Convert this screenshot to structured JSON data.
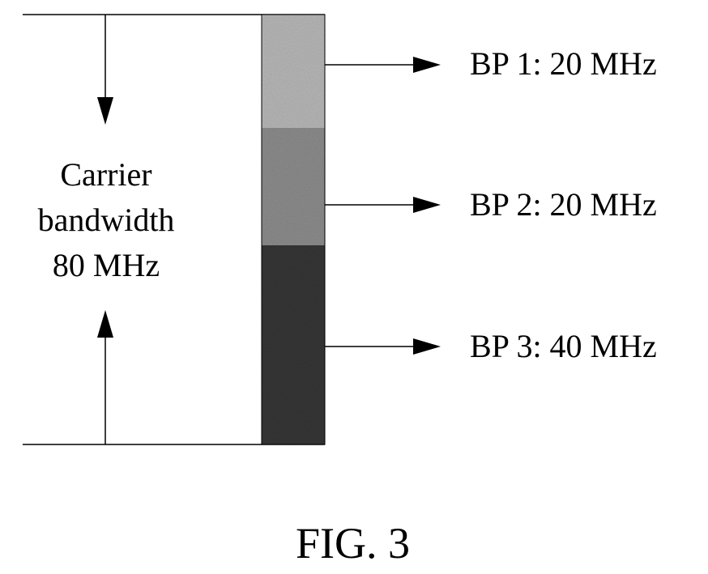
{
  "diagram": {
    "carrier": {
      "label_lines": [
        "Carrier",
        "bandwidth",
        "80 MHz"
      ]
    },
    "bandwidth_parts": [
      {
        "label": "BP 1: 20 MHz",
        "color": "#c8c8c8"
      },
      {
        "label": "BP 2: 20 MHz",
        "color": "#9a9a9a"
      },
      {
        "label": "BP 3: 40 MHz",
        "color": "#3c3c3c"
      }
    ],
    "caption": "FIG. 3"
  }
}
